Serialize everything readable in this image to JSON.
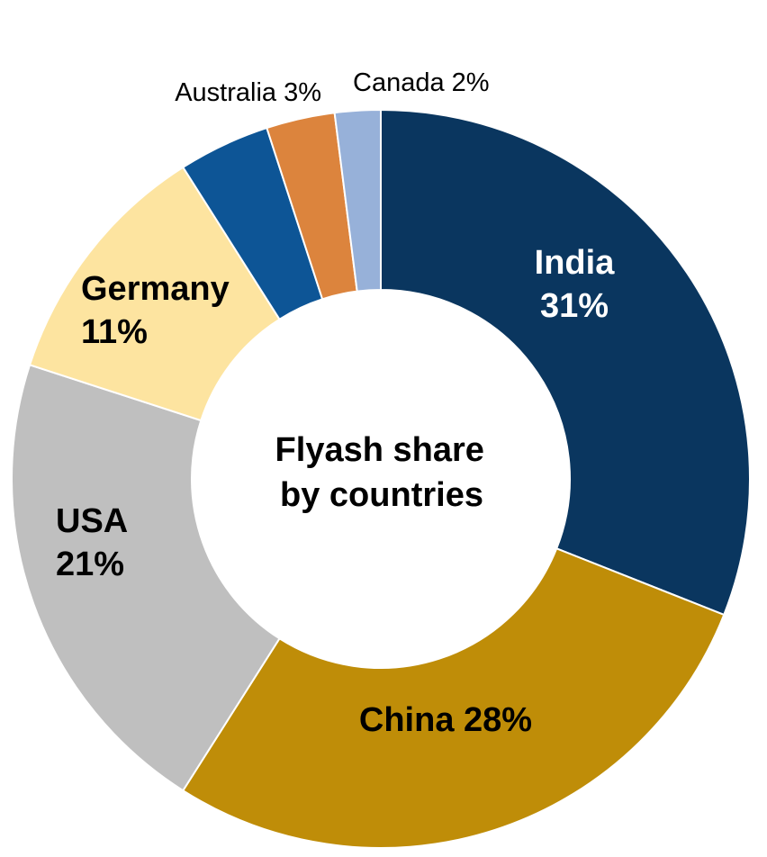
{
  "chart_data": {
    "type": "pie",
    "center_title": [
      "Flyash share",
      "by countries"
    ],
    "slices": [
      {
        "label": "India",
        "value": 31,
        "value_text": "31%",
        "color": "#0a365f",
        "text_color": "#ffffff"
      },
      {
        "label": "China",
        "value": 28,
        "value_text": "28%",
        "color": "#bf8d08",
        "text_color": "#000000"
      },
      {
        "label": "USA",
        "value": 21,
        "value_text": "21%",
        "color": "#bfbfbf",
        "text_color": "#000000"
      },
      {
        "label": "Germany",
        "value": 11,
        "value_text": "11%",
        "color": "#fde4a0",
        "text_color": "#000000"
      },
      {
        "label": "",
        "value": 4,
        "value_text": "",
        "color": "#0d5596",
        "text_color": "#000000"
      },
      {
        "label": "Australia",
        "value": 3,
        "value_text": "3%",
        "color": "#dc843d",
        "text_color": "#000000"
      },
      {
        "label": "Canada",
        "value": 2,
        "value_text": "2%",
        "color": "#97b1d9",
        "text_color": "#000000"
      }
    ]
  }
}
